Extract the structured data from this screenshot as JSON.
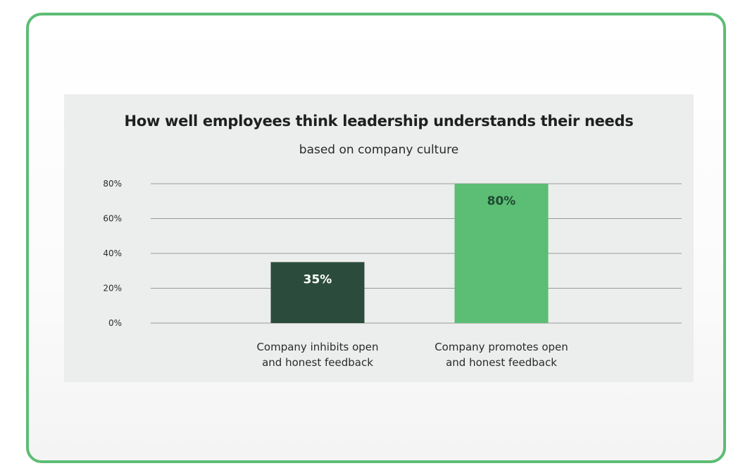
{
  "chart_data": {
    "type": "bar",
    "title": "How well employees think leadership understands their needs",
    "subtitle": "based on company culture",
    "xlabel": "",
    "ylabel": "",
    "categories": [
      [
        "Company inhibits open",
        "and honest feedback"
      ],
      [
        "Company promotes open",
        "and honest feedback"
      ]
    ],
    "values": [
      35,
      80
    ],
    "data_labels": [
      "35%",
      "80%"
    ],
    "bar_colors": [
      "#2b4c3c",
      "#5cbd74"
    ],
    "data_label_colors": [
      "#ffffff",
      "#1f4a33"
    ],
    "ylim": [
      0,
      80
    ],
    "yticks": [
      0,
      20,
      40,
      60,
      80
    ],
    "ytick_labels": [
      "0%",
      "20%",
      "40%",
      "60%",
      "80%"
    ],
    "grid": true,
    "legend": "none"
  },
  "colors": {
    "frame_border": "#5cbd74",
    "panel_background": "#eceded",
    "gridline": "#9a9a9a"
  }
}
